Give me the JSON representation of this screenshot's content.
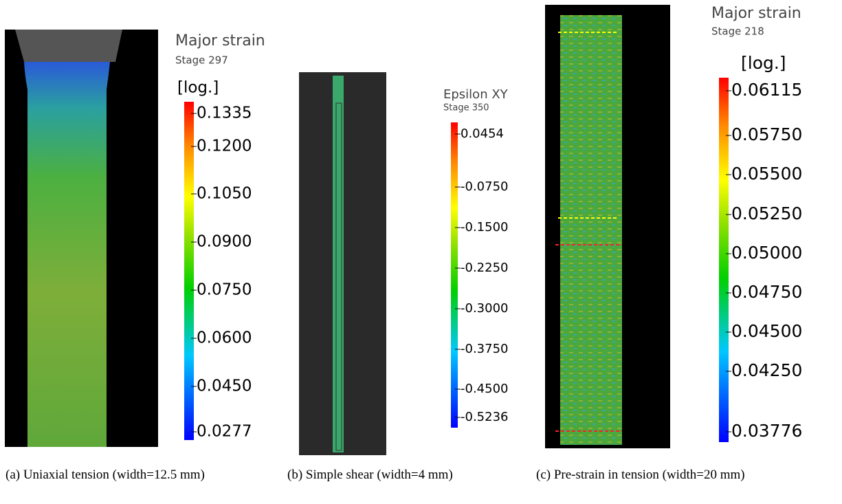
{
  "panels": [
    {
      "title": "Major strain",
      "stage": "Stage 297",
      "unit": "[log.]",
      "ticks": [
        "0.1335",
        "0.1200",
        "0.1050",
        "0.0900",
        "0.0750",
        "0.0600",
        "0.0450",
        "0.0277"
      ],
      "caption": "(a) Uniaxial tension (width=12.5 mm)"
    },
    {
      "title": "Epsilon XY",
      "stage": "Stage 350",
      "ticks": [
        "0.0454",
        "-0.0750",
        "-0.1500",
        "-0.2250",
        "-0.3000",
        "-0.3750",
        "-0.4500",
        "-0.5236"
      ],
      "caption": "(b) Simple shear (width=4 mm)"
    },
    {
      "title": "Major strain",
      "stage": "Stage 218",
      "unit": "[log.]",
      "ticks": [
        "0.06115",
        "0.05750",
        "0.05500",
        "0.05250",
        "0.05000",
        "0.04750",
        "0.04500",
        "0.04250",
        "0.03776"
      ],
      "caption": "(c) Pre-strain in tension (width=20 mm)"
    }
  ]
}
